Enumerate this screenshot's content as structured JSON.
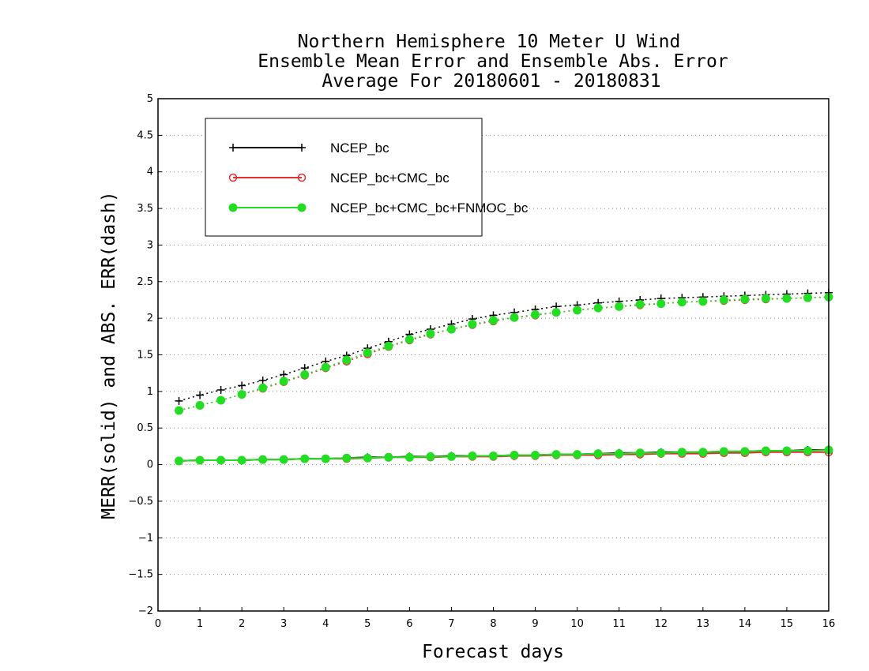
{
  "chart_data": {
    "type": "line",
    "title_lines": [
      "Northern Hemisphere 10 Meter U Wind",
      "Ensemble Mean Error and Ensemble Abs. Error",
      "Average For 20180601 - 20180831"
    ],
    "xlabel": "Forecast days",
    "ylabel": "MERR(solid) and ABS. ERR(dash)",
    "xlim": [
      0,
      16
    ],
    "ylim": [
      -2,
      5
    ],
    "xticks": [
      0,
      1,
      2,
      3,
      4,
      5,
      6,
      7,
      8,
      9,
      10,
      11,
      12,
      13,
      14,
      15,
      16
    ],
    "yticks": [
      -2,
      -1.5,
      -1,
      -0.5,
      0,
      0.5,
      1,
      1.5,
      2,
      2.5,
      3,
      3.5,
      4,
      4.5,
      5
    ],
    "grid": "horizontal dotted",
    "legend_position": "top-left",
    "x": [
      0.5,
      1,
      1.5,
      2,
      2.5,
      3,
      3.5,
      4,
      4.5,
      5,
      5.5,
      6,
      6.5,
      7,
      7.5,
      8,
      8.5,
      9,
      9.5,
      10,
      10.5,
      11,
      11.5,
      12,
      12.5,
      13,
      13.5,
      14,
      14.5,
      15,
      15.5,
      16
    ],
    "series": [
      {
        "name": "NCEP_bc",
        "color": "#000000",
        "marker": "plus",
        "merr": [
          0.05,
          0.06,
          0.06,
          0.06,
          0.07,
          0.07,
          0.08,
          0.08,
          0.09,
          0.1,
          0.1,
          0.11,
          0.11,
          0.12,
          0.12,
          0.12,
          0.13,
          0.13,
          0.14,
          0.14,
          0.15,
          0.16,
          0.16,
          0.17,
          0.17,
          0.17,
          0.18,
          0.18,
          0.19,
          0.19,
          0.2,
          0.2
        ],
        "abs_err": [
          0.87,
          0.95,
          1.02,
          1.08,
          1.15,
          1.23,
          1.32,
          1.41,
          1.49,
          1.59,
          1.68,
          1.78,
          1.85,
          1.92,
          1.99,
          2.04,
          2.08,
          2.12,
          2.16,
          2.18,
          2.21,
          2.23,
          2.25,
          2.27,
          2.28,
          2.29,
          2.3,
          2.31,
          2.32,
          2.33,
          2.34,
          2.35
        ]
      },
      {
        "name": "NCEP_bc+CMC_bc",
        "color": "#e03030",
        "marker": "open-circle",
        "merr": [
          0.05,
          0.06,
          0.06,
          0.06,
          0.07,
          0.07,
          0.08,
          0.08,
          0.08,
          0.09,
          0.1,
          0.1,
          0.1,
          0.11,
          0.11,
          0.11,
          0.12,
          0.12,
          0.13,
          0.13,
          0.13,
          0.14,
          0.14,
          0.15,
          0.15,
          0.15,
          0.16,
          0.16,
          0.17,
          0.17,
          0.17,
          0.17
        ],
        "abs_err": [
          0.74,
          0.81,
          0.88,
          0.96,
          1.04,
          1.13,
          1.22,
          1.32,
          1.41,
          1.51,
          1.61,
          1.7,
          1.78,
          1.85,
          1.91,
          1.96,
          2.01,
          2.04,
          2.08,
          2.11,
          2.14,
          2.16,
          2.18,
          2.2,
          2.22,
          2.23,
          2.24,
          2.25,
          2.26,
          2.27,
          2.28,
          2.29
        ]
      },
      {
        "name": "NCEP_bc+CMC_bc+FNMOC_bc",
        "color": "#22dd22",
        "marker": "filled-circle",
        "merr": [
          0.05,
          0.06,
          0.06,
          0.06,
          0.07,
          0.07,
          0.08,
          0.08,
          0.09,
          0.09,
          0.1,
          0.1,
          0.11,
          0.11,
          0.12,
          0.12,
          0.13,
          0.13,
          0.14,
          0.14,
          0.15,
          0.15,
          0.16,
          0.16,
          0.17,
          0.17,
          0.18,
          0.18,
          0.19,
          0.19,
          0.19,
          0.2
        ],
        "abs_err": [
          0.74,
          0.81,
          0.88,
          0.96,
          1.05,
          1.14,
          1.23,
          1.33,
          1.43,
          1.53,
          1.62,
          1.71,
          1.79,
          1.85,
          1.92,
          1.97,
          2.01,
          2.05,
          2.08,
          2.11,
          2.14,
          2.16,
          2.19,
          2.2,
          2.22,
          2.23,
          2.25,
          2.26,
          2.27,
          2.27,
          2.28,
          2.29
        ]
      }
    ]
  }
}
